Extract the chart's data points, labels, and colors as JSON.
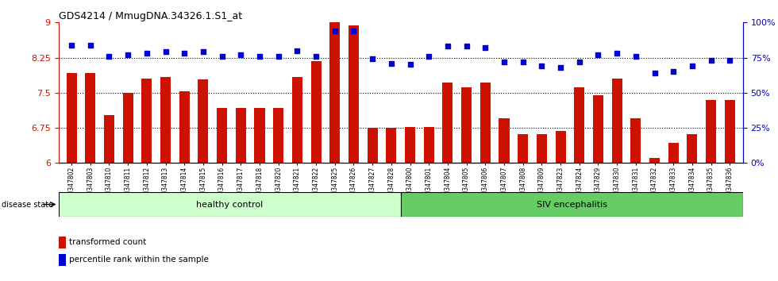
{
  "title": "GDS4214 / MmugDNA.34326.1.S1_at",
  "samples": [
    "GSM347802",
    "GSM347803",
    "GSM347810",
    "GSM347811",
    "GSM347812",
    "GSM347813",
    "GSM347814",
    "GSM347815",
    "GSM347816",
    "GSM347817",
    "GSM347818",
    "GSM347820",
    "GSM347821",
    "GSM347822",
    "GSM347825",
    "GSM347826",
    "GSM347827",
    "GSM347828",
    "GSM347800",
    "GSM347801",
    "GSM347804",
    "GSM347805",
    "GSM347806",
    "GSM347807",
    "GSM347808",
    "GSM347809",
    "GSM347823",
    "GSM347824",
    "GSM347829",
    "GSM347830",
    "GSM347831",
    "GSM347832",
    "GSM347833",
    "GSM347834",
    "GSM347835",
    "GSM347836"
  ],
  "bar_values": [
    7.92,
    7.92,
    7.02,
    7.5,
    7.8,
    7.83,
    7.53,
    7.78,
    7.17,
    7.17,
    7.17,
    7.17,
    7.83,
    8.18,
    9.0,
    8.93,
    6.75,
    6.75,
    6.77,
    6.77,
    7.72,
    7.62,
    7.72,
    6.95,
    6.62,
    6.62,
    6.68,
    7.62,
    7.45,
    7.8,
    6.95,
    6.1,
    6.43,
    6.62,
    7.35,
    7.35
  ],
  "percentile_values": [
    84,
    84,
    76,
    77,
    78,
    79,
    78,
    79,
    76,
    77,
    76,
    76,
    80,
    76,
    94,
    94,
    74,
    71,
    70,
    76,
    83,
    83,
    82,
    72,
    72,
    69,
    68,
    72,
    77,
    78,
    76,
    64,
    65,
    69,
    73,
    73
  ],
  "bar_color": "#CC1100",
  "dot_color": "#0000CC",
  "ylim_left": [
    6,
    9
  ],
  "ylim_right": [
    0,
    100
  ],
  "yticks_left": [
    6,
    6.75,
    7.5,
    8.25,
    9
  ],
  "yticks_right": [
    0,
    25,
    50,
    75,
    100
  ],
  "ytick_labels_left": [
    "6",
    "6.75",
    "7.5",
    "8.25",
    "9"
  ],
  "ytick_labels_right": [
    "0%",
    "25%",
    "50%",
    "75%",
    "100%"
  ],
  "hlines": [
    6.75,
    7.5,
    8.25
  ],
  "healthy_count": 18,
  "healthy_label": "healthy control",
  "siv_label": "SIV encephalitis",
  "disease_label": "disease state",
  "legend_bar": "transformed count",
  "legend_dot": "percentile rank within the sample",
  "healthy_color": "#CCFFCC",
  "siv_color": "#66CC66",
  "bar_baseline": 6.0
}
